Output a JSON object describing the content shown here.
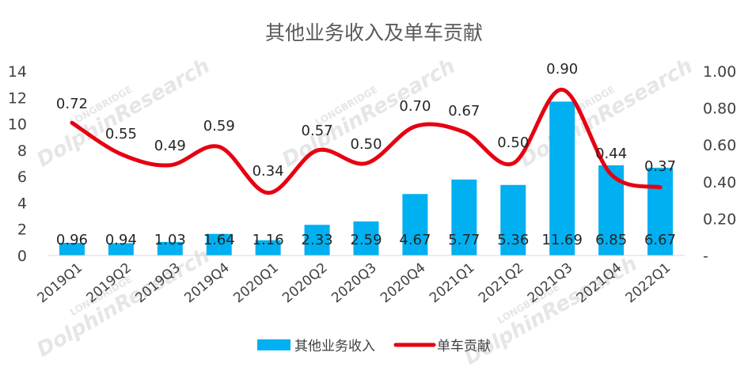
{
  "chart_data": {
    "type": "bar",
    "title": "其他业务收入及单车贡献",
    "categories": [
      "2019Q1",
      "2019Q2",
      "2019Q3",
      "2019Q4",
      "2020Q1",
      "2020Q2",
      "2020Q3",
      "2020Q4",
      "2021Q1",
      "2021Q2",
      "2021Q3",
      "2021Q4",
      "2022Q1"
    ],
    "series": [
      {
        "name": "其他业务收入",
        "kind": "bar",
        "axis": "left",
        "color": "#00b0f0",
        "values": [
          0.96,
          0.94,
          1.03,
          1.64,
          1.16,
          2.33,
          2.59,
          4.67,
          5.77,
          5.36,
          11.69,
          6.85,
          6.67
        ],
        "labels": [
          "0.96",
          "0.94",
          "1.03",
          "1.64",
          "1.16",
          "2.33",
          "2.59",
          "4.67",
          "5.77",
          "5.36",
          "11.69",
          "6.85",
          "6.67"
        ]
      },
      {
        "name": "单车贡献",
        "kind": "line",
        "axis": "right",
        "color": "#e60012",
        "values": [
          0.72,
          0.55,
          0.49,
          0.59,
          0.34,
          0.57,
          0.5,
          0.7,
          0.67,
          0.5,
          0.9,
          0.44,
          0.37
        ],
        "labels": [
          "0.72",
          "0.55",
          "0.49",
          "0.59",
          "0.34",
          "0.57",
          "0.50",
          "0.70",
          "0.67",
          "0.50",
          "0.90",
          "0.44",
          "0.37"
        ]
      }
    ],
    "y_left": {
      "ylim": [
        0,
        14
      ],
      "ticks": [
        "0",
        "2",
        "4",
        "6",
        "8",
        "10",
        "12",
        "14"
      ]
    },
    "y_right": {
      "ylim": [
        0,
        1.0
      ],
      "ticks": [
        "-",
        "0.20",
        "0.40",
        "0.60",
        "0.80",
        "1.00"
      ]
    },
    "legend": {
      "placement": "bottom",
      "entries": [
        "其他业务收入",
        "单车贡献"
      ]
    },
    "grid": false,
    "watermark": {
      "brand": "LONGBRIDGE",
      "text": "DolphinResearch"
    }
  }
}
